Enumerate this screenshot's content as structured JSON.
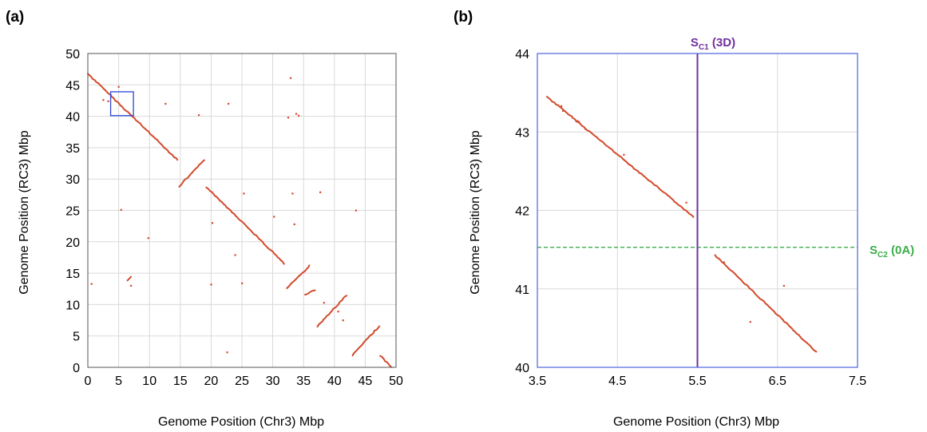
{
  "chart_data": [
    {
      "type": "scatter",
      "panel_label": "(a)",
      "xlabel": "Genome Position (Chr3)  Mbp",
      "ylabel": "Genome Position (RC3) Mbp",
      "xlim": [
        0,
        50
      ],
      "ylim": [
        0,
        50
      ],
      "xticks": [
        "0",
        "5",
        "10",
        "15",
        "20",
        "25",
        "30",
        "35",
        "40",
        "45",
        "50"
      ],
      "yticks": [
        "0",
        "5",
        "10",
        "15",
        "20",
        "25",
        "30",
        "35",
        "40",
        "45",
        "50"
      ],
      "grid": true,
      "colors": {
        "points": "#d24a2c",
        "frame": "#555555",
        "grid": "#d9d9d9",
        "highlight_box": "#2a46d6"
      },
      "highlight_box": {
        "x": [
          3.7,
          7.4
        ],
        "y": [
          40.1,
          43.9
        ]
      },
      "segments": [
        {
          "x": [
            0.0,
            14.6
          ],
          "y": [
            46.8,
            33.0
          ]
        },
        {
          "x": [
            14.8,
            18.9
          ],
          "y": [
            28.8,
            33.0
          ]
        },
        {
          "x": [
            19.3,
            31.9
          ],
          "y": [
            28.7,
            16.5
          ]
        },
        {
          "x": [
            32.3,
            36.0
          ],
          "y": [
            12.6,
            16.2
          ]
        },
        {
          "x": [
            35.3,
            36.8
          ],
          "y": [
            11.6,
            12.3
          ]
        },
        {
          "x": [
            37.2,
            42.0
          ],
          "y": [
            6.5,
            11.5
          ]
        },
        {
          "x": [
            42.9,
            47.3
          ],
          "y": [
            1.9,
            6.6
          ]
        },
        {
          "x": [
            47.5,
            49.3
          ],
          "y": [
            1.8,
            0.0
          ]
        },
        {
          "x": [
            6.5,
            7.0
          ],
          "y": [
            13.8,
            14.5
          ]
        }
      ],
      "points": [
        {
          "x": 0.6,
          "y": 13.3
        },
        {
          "x": 2.5,
          "y": 42.6
        },
        {
          "x": 3.3,
          "y": 42.4
        },
        {
          "x": 5.0,
          "y": 44.7
        },
        {
          "x": 5.4,
          "y": 25.1
        },
        {
          "x": 9.8,
          "y": 20.6
        },
        {
          "x": 12.6,
          "y": 42.0
        },
        {
          "x": 18.0,
          "y": 40.2
        },
        {
          "x": 20.0,
          "y": 13.2
        },
        {
          "x": 20.2,
          "y": 23.0
        },
        {
          "x": 22.6,
          "y": 2.4
        },
        {
          "x": 22.8,
          "y": 42.0
        },
        {
          "x": 23.9,
          "y": 17.9
        },
        {
          "x": 25.0,
          "y": 13.4
        },
        {
          "x": 25.3,
          "y": 27.7
        },
        {
          "x": 30.2,
          "y": 24.0
        },
        {
          "x": 32.5,
          "y": 39.8
        },
        {
          "x": 32.9,
          "y": 46.1
        },
        {
          "x": 33.2,
          "y": 27.7
        },
        {
          "x": 33.5,
          "y": 22.8
        },
        {
          "x": 33.8,
          "y": 40.4
        },
        {
          "x": 34.2,
          "y": 40.1
        },
        {
          "x": 37.7,
          "y": 27.9
        },
        {
          "x": 38.3,
          "y": 10.3
        },
        {
          "x": 40.6,
          "y": 8.9
        },
        {
          "x": 43.5,
          "y": 25.0
        },
        {
          "x": 7.0,
          "y": 13.0
        },
        {
          "x": 41.4,
          "y": 7.5
        }
      ]
    },
    {
      "type": "scatter",
      "panel_label": "(b)",
      "xlabel": "Genome Position (Chr3)  Mbp",
      "ylabel": "Genome Position (RC3) Mbp",
      "xlim": [
        3.5,
        7.5
      ],
      "ylim": [
        40,
        44
      ],
      "xticks": [
        "3.5",
        "4.5",
        "5.5",
        "6.5",
        "7.5"
      ],
      "yticks": [
        "40",
        "41",
        "42",
        "43",
        "44"
      ],
      "grid": true,
      "colors": {
        "points": "#d24a2c",
        "frame": "#5b6fe0",
        "grid": "#d9d9d9",
        "vline": "#7030a0",
        "hline": "#3cae49"
      },
      "vline": {
        "x": 5.5,
        "label": "S",
        "label_sub": "C1",
        "label_suffix": " (3D)"
      },
      "hline": {
        "y": 41.53,
        "label": "S",
        "label_sub": "C2",
        "label_suffix": " (0A)"
      },
      "segments": [
        {
          "x": [
            3.62,
            5.45
          ],
          "y": [
            43.45,
            41.92
          ]
        },
        {
          "x": [
            5.72,
            6.98
          ],
          "y": [
            41.43,
            40.2
          ]
        }
      ],
      "points": [
        {
          "x": 3.8,
          "y": 43.33
        },
        {
          "x": 3.82,
          "y": 43.27
        },
        {
          "x": 4.0,
          "y": 43.14
        },
        {
          "x": 4.02,
          "y": 43.13
        },
        {
          "x": 4.58,
          "y": 42.71
        },
        {
          "x": 4.1,
          "y": 43.04
        },
        {
          "x": 5.36,
          "y": 42.1
        },
        {
          "x": 6.58,
          "y": 41.04
        },
        {
          "x": 6.16,
          "y": 40.58
        },
        {
          "x": 5.83,
          "y": 41.34
        }
      ]
    }
  ]
}
